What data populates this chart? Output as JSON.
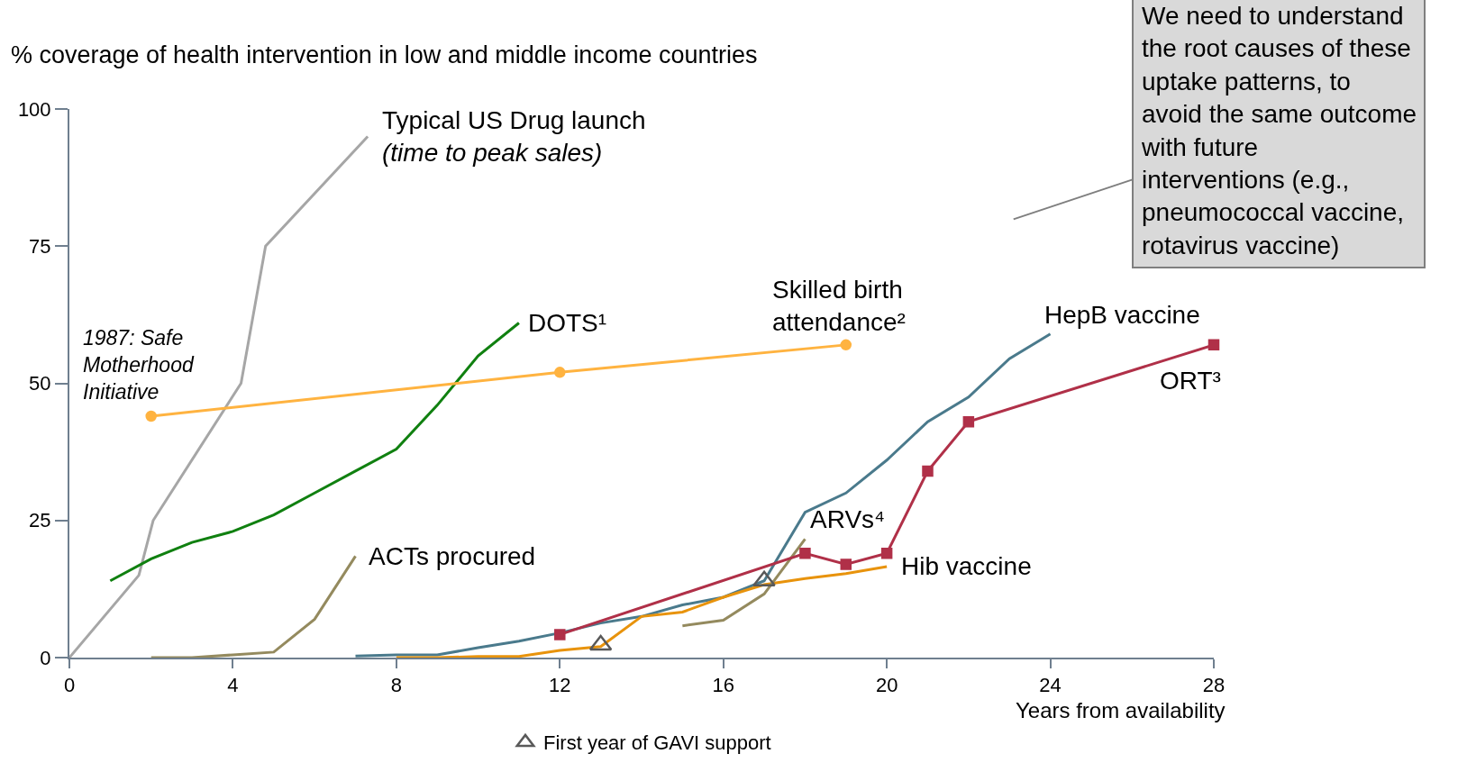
{
  "chart_data": {
    "type": "line",
    "ylabel": "% coverage of health intervention in low and middle income countries",
    "xlabel": "Years from availability",
    "xlim": [
      0,
      28
    ],
    "xticks": [
      0,
      4,
      8,
      12,
      16,
      20,
      24,
      28
    ],
    "ylim": [
      0,
      100
    ],
    "yticks": [
      0,
      25,
      50,
      75,
      100
    ],
    "grid": false,
    "legend": "bottom",
    "line_style": "solid",
    "marker": "none",
    "series": [
      {
        "name": "Typical US Drug launch (time to peak sales)",
        "color": "#a6a6a6",
        "x": [
          0,
          1.7,
          2.05,
          4.2,
          4.8,
          7.3
        ],
        "values": [
          0,
          15,
          25,
          50,
          75,
          95
        ]
      },
      {
        "name": "DOTS¹",
        "color": "#108010",
        "x": [
          1,
          2,
          3,
          4,
          5,
          6,
          7,
          8,
          9,
          10,
          11
        ],
        "values": [
          14,
          18,
          21,
          23,
          26,
          30,
          34,
          38,
          46,
          55,
          61
        ]
      },
      {
        "name": "Skilled birth attendance²",
        "color": "#ffb340",
        "marker": "circle",
        "x": [
          2,
          12,
          19
        ],
        "values": [
          44,
          52,
          57
        ]
      },
      {
        "name": "ACTs procured",
        "color": "#948a5e",
        "x": [
          2,
          3,
          4,
          5,
          6,
          7
        ],
        "values": [
          0,
          0,
          0.5,
          1,
          7,
          18.5
        ]
      },
      {
        "name": "HepB vaccine",
        "color": "#4a7a8c",
        "x": [
          7,
          8,
          9,
          10,
          11,
          12,
          13,
          14,
          15,
          16,
          17,
          18,
          19,
          20,
          21,
          22,
          23,
          24
        ],
        "values": [
          0.3,
          0.5,
          0.5,
          1.8,
          3,
          4.5,
          6.3,
          7.5,
          9.6,
          11,
          14,
          26.5,
          30,
          36,
          43,
          47.5,
          54.5,
          59
        ]
      },
      {
        "name": "Hib vaccine",
        "color": "#e8930c",
        "x": [
          8,
          9,
          10,
          11,
          12,
          13,
          14,
          15,
          16,
          17,
          18,
          19,
          20
        ],
        "values": [
          0,
          0,
          0.2,
          0.2,
          1.3,
          2,
          7.5,
          8.3,
          11,
          13.3,
          14.4,
          15.3,
          16.6
        ]
      },
      {
        "name": "ARVs⁴",
        "color": "#948a5e",
        "x": [
          15,
          16,
          17,
          18
        ],
        "values": [
          5.8,
          6.8,
          11.6,
          21.6
        ]
      },
      {
        "name": "ORT³",
        "color": "#b03048",
        "marker": "square",
        "x": [
          12,
          18,
          19,
          20,
          21,
          22,
          28
        ],
        "values": [
          4.2,
          19,
          17,
          19,
          34,
          43,
          57
        ]
      },
      {
        "name": "First year of GAVI support",
        "type": "scatter",
        "color": "#595959",
        "marker": "triangle",
        "x": [
          13,
          17
        ],
        "values": [
          2.3,
          14
        ]
      }
    ],
    "annotations": [
      {
        "text": "1987: Safe Motherhood Initiative",
        "x": 2,
        "y": 44
      },
      "We need to understand the root causes of these uptake patterns, to avoid the same outcome with future interventions (e.g., pneumococcal vaccine, rotavirus vaccine)"
    ]
  }
}
